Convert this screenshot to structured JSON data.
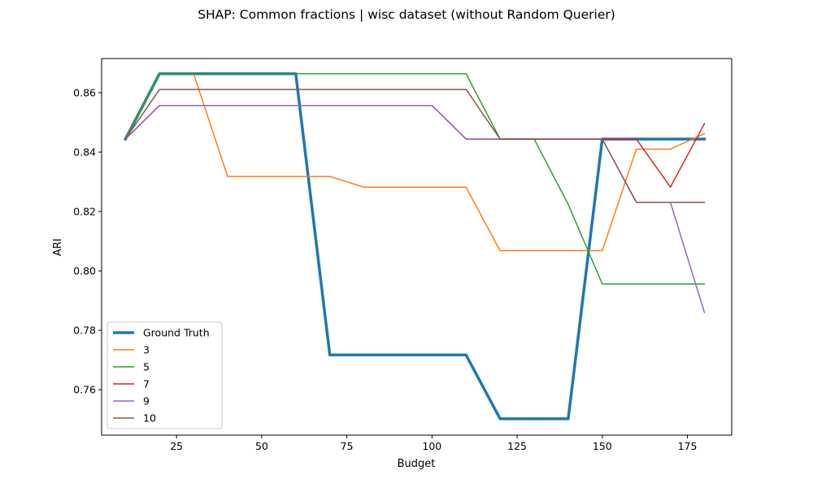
{
  "chart_data": {
    "type": "line",
    "title": "SHAP: Common fractions | wisc dataset (without Random Querier)",
    "xlabel": "Budget",
    "ylabel": "ARI",
    "xlim": [
      3,
      188
    ],
    "ylim": [
      0.7447,
      0.8715
    ],
    "xticks": [
      25,
      50,
      75,
      100,
      125,
      150,
      175
    ],
    "yticks": [
      0.76,
      0.78,
      0.8,
      0.82,
      0.84,
      0.86
    ],
    "ytick_labels": [
      "0.76",
      "0.78",
      "0.80",
      "0.82",
      "0.84",
      "0.86"
    ],
    "x": [
      10,
      20,
      30,
      40,
      50,
      60,
      70,
      80,
      90,
      100,
      110,
      120,
      130,
      140,
      150,
      160,
      170,
      180
    ],
    "grid": false,
    "legend_position": "lower-left",
    "series": [
      {
        "name": "Ground Truth",
        "color": "#1f77b4",
        "width": 3.5,
        "values": [
          0.8444,
          0.8664,
          0.8664,
          0.8664,
          0.8664,
          0.8664,
          0.7717,
          0.7717,
          0.7717,
          0.7717,
          0.7717,
          0.7502,
          0.7502,
          0.7502,
          0.8444,
          0.8444,
          0.8444,
          0.8444
        ]
      },
      {
        "name": "3",
        "color": "#ff7f0e",
        "width": 1.5,
        "values": [
          0.8444,
          0.8664,
          0.8664,
          0.8318,
          0.8318,
          0.8318,
          0.8318,
          0.8282,
          0.8282,
          0.8282,
          0.8282,
          0.8068,
          0.8068,
          0.8068,
          0.8068,
          0.841,
          0.841,
          0.8462
        ]
      },
      {
        "name": "5",
        "color": "#2ca02c",
        "width": 1.5,
        "values": [
          0.8444,
          0.8664,
          0.8664,
          0.8664,
          0.8664,
          0.8664,
          0.8664,
          0.8664,
          0.8664,
          0.8664,
          0.8664,
          0.8444,
          0.8444,
          0.8224,
          0.7956,
          0.7956,
          0.7956,
          0.7956
        ]
      },
      {
        "name": "7",
        "color": "#d62728",
        "width": 1.5,
        "values": [
          0.8444,
          0.8557,
          0.8557,
          0.8557,
          0.8557,
          0.8557,
          0.8557,
          0.8557,
          0.8557,
          0.8557,
          0.8444,
          0.8444,
          0.8444,
          0.8444,
          0.8444,
          0.8444,
          0.8282,
          0.8496
        ]
      },
      {
        "name": "9",
        "color": "#9467bd",
        "width": 1.5,
        "values": [
          0.8444,
          0.8557,
          0.8557,
          0.8557,
          0.8557,
          0.8557,
          0.8557,
          0.8557,
          0.8557,
          0.8557,
          0.8444,
          0.8444,
          0.8444,
          0.8444,
          0.8444,
          0.8231,
          0.8231,
          0.786
        ]
      },
      {
        "name": "10",
        "color": "#8c564b",
        "width": 1.5,
        "values": [
          0.8444,
          0.8611,
          0.8611,
          0.8611,
          0.8611,
          0.8611,
          0.8611,
          0.8611,
          0.8611,
          0.8611,
          0.8611,
          0.8444,
          0.8444,
          0.8444,
          0.8444,
          0.8231,
          0.8231,
          0.8231
        ]
      }
    ]
  }
}
